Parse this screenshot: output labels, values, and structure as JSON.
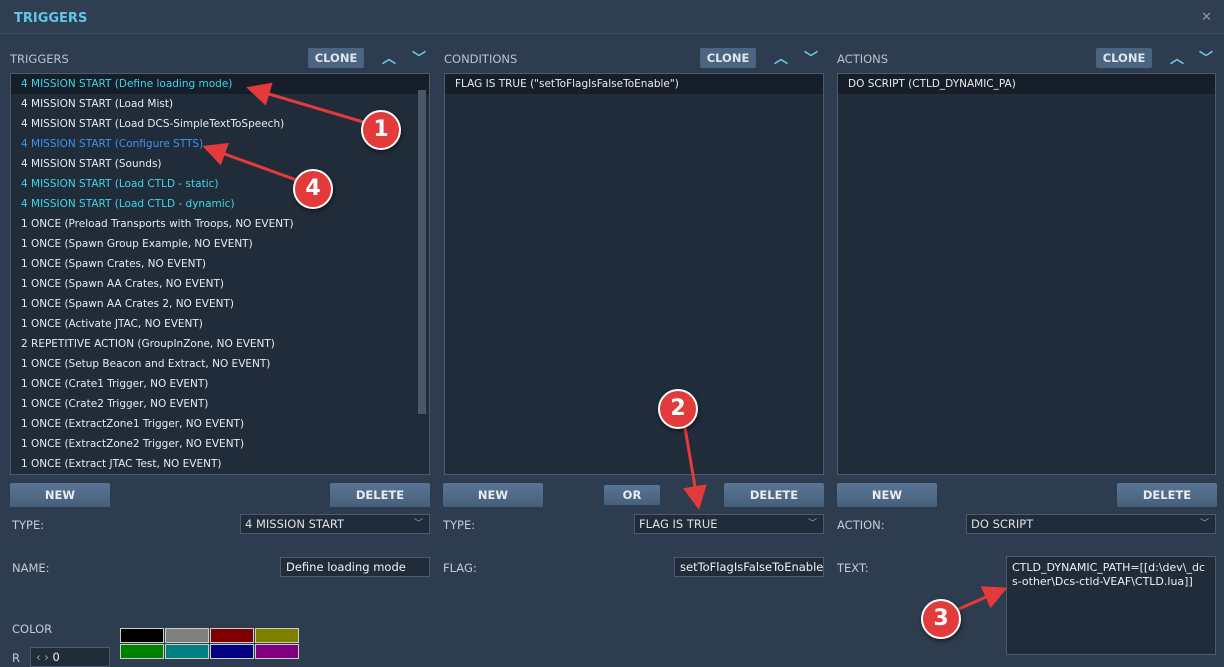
{
  "window": {
    "title": "TRIGGERS",
    "close_icon": "close-icon"
  },
  "triggers": {
    "label": "TRIGGERS",
    "clone": "CLONE",
    "items": [
      {
        "text": "4 MISSION START (Define loading mode)",
        "color": "cyan",
        "selected": true
      },
      {
        "text": "4 MISSION START (Load Mist)",
        "color": "white"
      },
      {
        "text": "4 MISSION START (Load DCS-SimpleTextToSpeech)",
        "color": "white"
      },
      {
        "text": "4 MISSION START (Configure STTS)",
        "color": "blue"
      },
      {
        "text": "4 MISSION START (Sounds)",
        "color": "white"
      },
      {
        "text": "4 MISSION START (Load CTLD - static)",
        "color": "cyan"
      },
      {
        "text": "4 MISSION START (Load CTLD - dynamic)",
        "color": "cyan"
      },
      {
        "text": "1 ONCE (Preload Transports with Troops, NO EVENT)",
        "color": "white"
      },
      {
        "text": "1 ONCE (Spawn Group Example, NO EVENT)",
        "color": "white"
      },
      {
        "text": "1 ONCE (Spawn Crates, NO EVENT)",
        "color": "white"
      },
      {
        "text": "1 ONCE (Spawn AA Crates, NO EVENT)",
        "color": "white"
      },
      {
        "text": "1 ONCE (Spawn AA Crates 2, NO EVENT)",
        "color": "white"
      },
      {
        "text": "1 ONCE (Activate JTAC, NO EVENT)",
        "color": "white"
      },
      {
        "text": "2 REPETITIVE ACTION (GroupInZone, NO EVENT)",
        "color": "white"
      },
      {
        "text": "1 ONCE (Setup Beacon and Extract, NO EVENT)",
        "color": "white"
      },
      {
        "text": "1 ONCE (Crate1 Trigger, NO EVENT)",
        "color": "white"
      },
      {
        "text": "1 ONCE (Crate2 Trigger, NO EVENT)",
        "color": "white"
      },
      {
        "text": "1 ONCE (ExtractZone1 Trigger, NO EVENT)",
        "color": "white"
      },
      {
        "text": "1 ONCE (ExtractZone2 Trigger, NO EVENT)",
        "color": "white"
      },
      {
        "text": "1 ONCE (Extract JTAC Test, NO EVENT)",
        "color": "white"
      }
    ],
    "new": "NEW",
    "delete": "DELETE",
    "type_label": "TYPE:",
    "type_value": "4 MISSION START",
    "name_label": "NAME:",
    "name_value": "Define loading mode",
    "color_label": "COLOR",
    "r_label": "R",
    "r_value": "0",
    "swatches": [
      "#000000",
      "#808080",
      "#800000",
      "#808000",
      "#008000",
      "#008080",
      "#000080",
      "#800080"
    ]
  },
  "conditions": {
    "label": "CONDITIONS",
    "clone": "CLONE",
    "items": [
      {
        "text": "FLAG IS TRUE (\"setToFlagIsFalseToEnable\")"
      }
    ],
    "new": "NEW",
    "or": "OR",
    "delete": "DELETE",
    "type_label": "TYPE:",
    "type_value": "FLAG IS TRUE",
    "flag_label": "FLAG:",
    "flag_value": "setToFlagIsFalseToEnable"
  },
  "actions": {
    "label": "ACTIONS",
    "clone": "CLONE",
    "items": [
      {
        "text": "DO SCRIPT (CTLD_DYNAMIC_PA)"
      }
    ],
    "new": "NEW",
    "delete": "DELETE",
    "action_label": "ACTION:",
    "action_value": "DO SCRIPT",
    "text_label": "TEXT:",
    "text_value": "CTLD_DYNAMIC_PATH=[[d:\\dev\\_dcs-other\\Dcs-ctld-VEAF\\CTLD.lua]]"
  },
  "annotations": [
    "1",
    "2",
    "3",
    "4"
  ],
  "colors": {
    "background": "#2d3c4f",
    "accent": "#5ec8ea",
    "cyan_item": "#3fd6e6",
    "blue_item": "#3a92ee",
    "annotation": "#e33b3b"
  }
}
